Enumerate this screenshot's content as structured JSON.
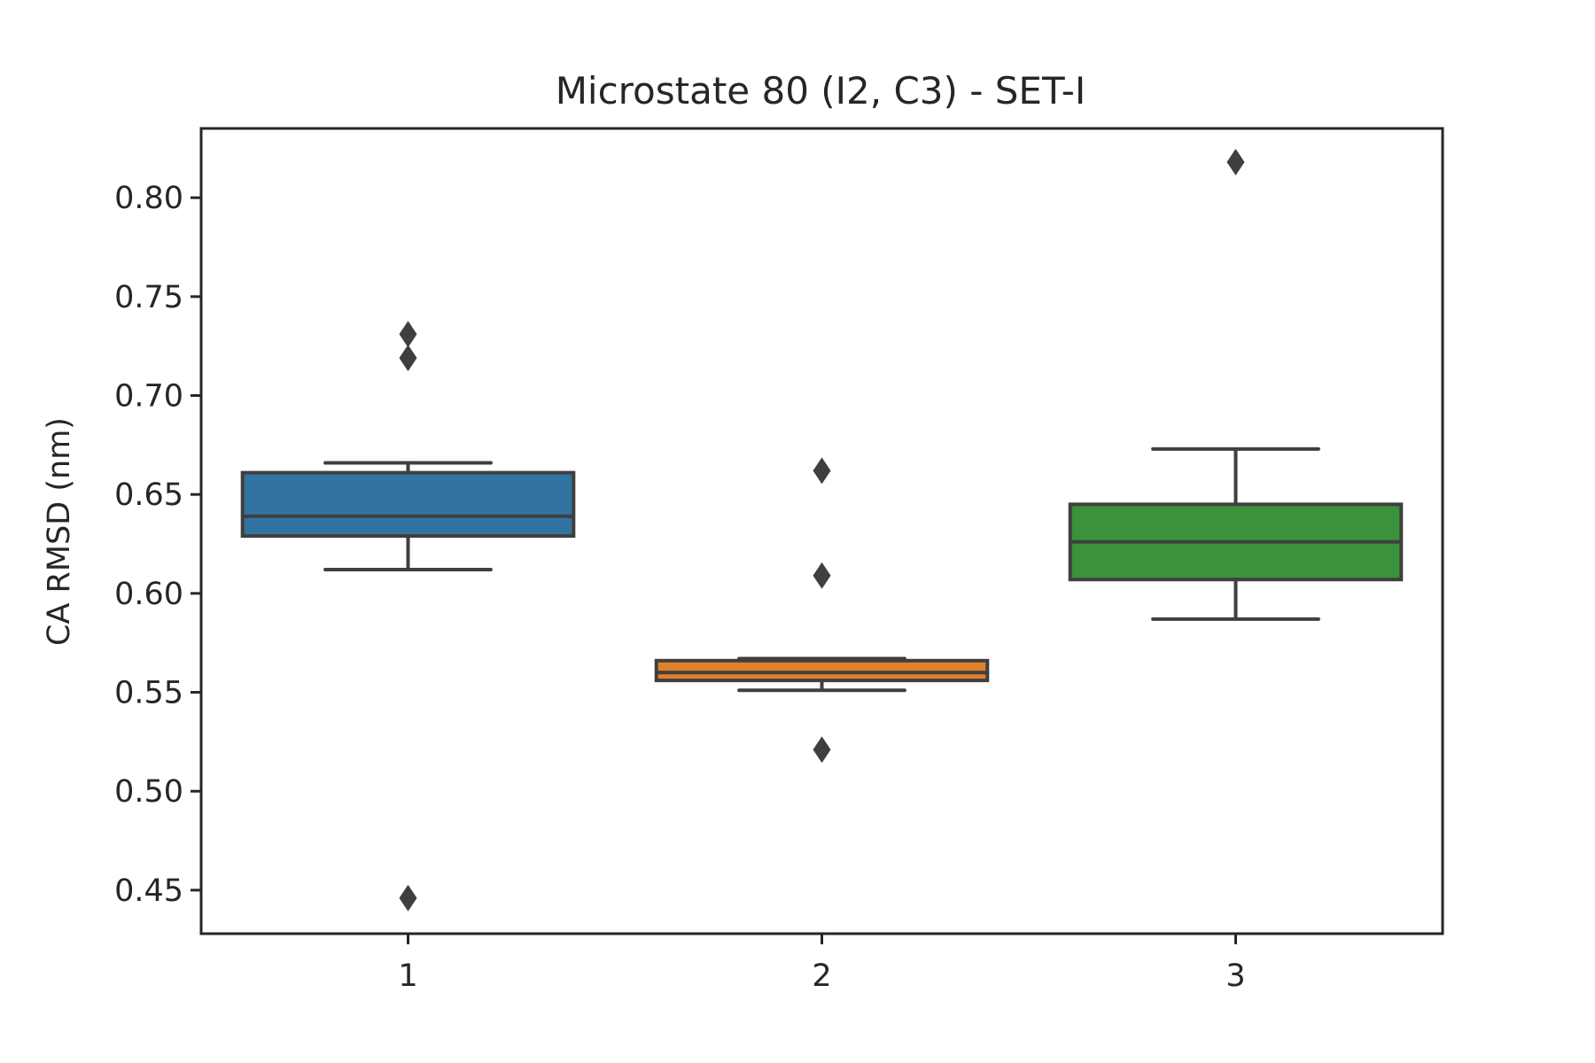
{
  "chart_data": {
    "type": "box",
    "title": "Microstate 80 (I2, C3) - SET-I",
    "xlabel": "",
    "ylabel": "CA RMSD (nm)",
    "ylim": [
      0.428,
      0.835
    ],
    "yticks": [
      "0.45",
      "0.50",
      "0.55",
      "0.60",
      "0.65",
      "0.70",
      "0.75",
      "0.80"
    ],
    "categories": [
      "1",
      "2",
      "3"
    ],
    "grid": false,
    "legend": "none",
    "boxes": [
      {
        "category": "1",
        "color": "#3274a1",
        "whisker_low": 0.612,
        "q1": 0.629,
        "median": 0.639,
        "q3": 0.661,
        "whisker_high": 0.666,
        "outliers": [
          0.731,
          0.719,
          0.446
        ]
      },
      {
        "category": "2",
        "color": "#e1812c",
        "whisker_low": 0.551,
        "q1": 0.556,
        "median": 0.56,
        "q3": 0.566,
        "whisker_high": 0.567,
        "outliers": [
          0.662,
          0.609,
          0.521
        ]
      },
      {
        "category": "3",
        "color": "#3a923a",
        "whisker_low": 0.587,
        "q1": 0.607,
        "median": 0.626,
        "q3": 0.645,
        "whisker_high": 0.673,
        "outliers": [
          0.818
        ]
      }
    ],
    "colors": {
      "axis": "#262626",
      "box_edge": "#3f3f3f"
    }
  }
}
